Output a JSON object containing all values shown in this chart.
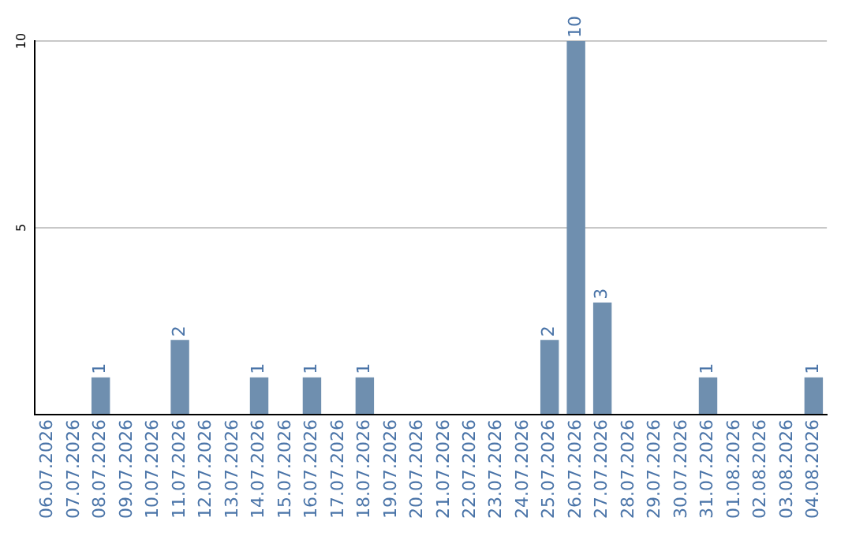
{
  "chart_data": {
    "type": "bar",
    "categories": [
      "06.07.2026",
      "07.07.2026",
      "08.07.2026",
      "09.07.2026",
      "10.07.2026",
      "11.07.2026",
      "12.07.2026",
      "13.07.2026",
      "14.07.2026",
      "15.07.2026",
      "16.07.2026",
      "17.07.2026",
      "18.07.2026",
      "19.07.2026",
      "20.07.2026",
      "21.07.2026",
      "22.07.2026",
      "23.07.2026",
      "24.07.2026",
      "25.07.2026",
      "26.07.2026",
      "27.07.2026",
      "28.07.2026",
      "29.07.2026",
      "30.07.2026",
      "31.07.2026",
      "01.08.2026",
      "02.08.2026",
      "03.08.2026",
      "04.08.2026"
    ],
    "values": [
      0,
      0,
      1,
      0,
      0,
      2,
      0,
      0,
      1,
      0,
      1,
      0,
      1,
      0,
      0,
      0,
      0,
      0,
      0,
      2,
      10,
      3,
      0,
      0,
      0,
      1,
      0,
      0,
      0,
      1
    ],
    "value_labels": [
      null,
      null,
      "1",
      null,
      null,
      "2",
      null,
      null,
      "1",
      null,
      "1",
      null,
      "1",
      null,
      null,
      null,
      null,
      null,
      null,
      "2",
      "10",
      "3",
      null,
      null,
      null,
      "1",
      null,
      null,
      null,
      "1"
    ],
    "color": "#6f8faf",
    "ylim": [
      0,
      10
    ],
    "yticks": [
      {
        "value": 0,
        "label": null
      },
      5,
      10
    ],
    "grid": "y"
  }
}
